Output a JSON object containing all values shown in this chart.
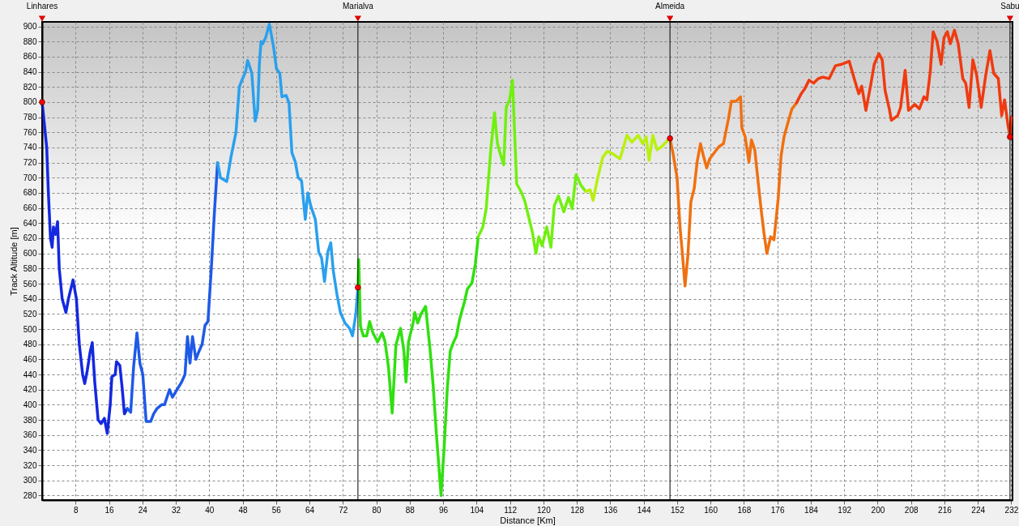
{
  "chart_data": {
    "type": "line",
    "xlabel": "Distance [Km]",
    "ylabel": "Track Altitude [m]",
    "xlim": [
      0,
      232.3
    ],
    "ylim": [
      274,
      906
    ],
    "xticks": [
      8,
      16,
      24,
      32,
      40,
      48,
      56,
      64,
      72,
      80,
      88,
      96,
      104,
      112,
      120,
      128,
      136,
      144,
      152,
      160,
      168,
      176,
      184,
      192,
      200,
      208,
      216,
      224,
      232
    ],
    "yticks": [
      280,
      300,
      320,
      340,
      360,
      380,
      400,
      420,
      440,
      460,
      480,
      500,
      520,
      540,
      560,
      580,
      600,
      620,
      640,
      660,
      680,
      700,
      720,
      740,
      760,
      780,
      800,
      820,
      840,
      860,
      880,
      900
    ],
    "grid": true,
    "series": [
      {
        "color": "#1428e0",
        "x": [
          0,
          1.1,
          1.5,
          2.0,
          2.4,
          2.7,
          3.2,
          3.7,
          4.1,
          4.8,
          5.7,
          6.3,
          7.4,
          8.2,
          8.9,
          9.7,
          10.2,
          10.8,
          11.5,
          12.0,
          12.6,
          13.4,
          14.1,
          14.9,
          15.6,
          16.3,
          16.7,
          17.5,
          17.8,
          18.6,
          19.2,
          19.7,
          20.4
        ],
        "values": [
          800,
          740,
          680,
          620,
          608,
          635,
          625,
          642,
          580,
          540,
          522,
          540,
          565,
          540,
          480,
          440,
          428,
          445,
          470,
          482,
          430,
          380,
          375,
          382,
          362,
          400,
          437,
          440,
          457,
          452,
          420,
          388,
          395
        ]
      },
      {
        "color": "#1e5ae8",
        "x": [
          20.4,
          21.2,
          21.9,
          22.7,
          23.4,
          24.1,
          24.9,
          26.0,
          26.7,
          27.5,
          28.6,
          29.3,
          30.5,
          31.2,
          32.3,
          33.4,
          34.2,
          34.8,
          35.4,
          36.0,
          36.8,
          37.5,
          38.3,
          39.0,
          39.7,
          40.5,
          41.2,
          42.0
        ],
        "values": [
          395,
          390,
          450,
          495,
          455,
          440,
          378,
          378,
          388,
          395,
          400,
          400,
          420,
          410,
          420,
          430,
          440,
          490,
          455,
          490,
          460,
          470,
          480,
          505,
          510,
          580,
          650,
          720
        ]
      },
      {
        "color": "#2aa0ee",
        "x": [
          42.0,
          42.7,
          44.2,
          45.3,
          46.4,
          47.2,
          47.9,
          48.7,
          49.2,
          49.8,
          50.2,
          51.0,
          51.6,
          52.0,
          52.4,
          52.8,
          53.5,
          54.4,
          55.4,
          56.1,
          56.9,
          57.4,
          58.4,
          59.1,
          59.8,
          60.6,
          61.3,
          62.1,
          63.0,
          63.6,
          64.3,
          65.4,
          66.2,
          66.9,
          67.6,
          68.4,
          69.1,
          69.7,
          70.6,
          71.4,
          72.5,
          73.6,
          74.3,
          75.1,
          75.6
        ],
        "values": [
          720,
          700,
          695,
          730,
          760,
          820,
          830,
          840,
          855,
          845,
          838,
          775,
          790,
          850,
          880,
          877,
          885,
          903,
          873,
          844,
          838,
          807,
          809,
          799,
          733,
          721,
          700,
          696,
          645,
          680,
          663,
          645,
          602,
          594,
          563,
          602,
          614,
          577,
          545,
          522,
          508,
          501,
          491,
          520,
          555
        ]
      },
      {
        "color": "#30e010",
        "x": [
          75.6,
          75.8,
          76.2,
          76.9,
          77.7,
          78.4,
          79.2,
          80.3,
          81.4,
          82.1,
          82.9,
          83.8,
          84.7,
          85.8,
          86.6,
          87.1,
          87.7,
          88.8,
          89.2,
          89.9,
          90.7,
          91.8,
          92.9,
          93.6,
          94.4,
          95.5,
          96.2,
          97.0,
          97.7,
          98.5,
          99.2,
          99.9,
          101.1,
          101.8,
          102.9,
          103.7,
          104.4
        ],
        "values": [
          555,
          592,
          504,
          491,
          491,
          510,
          495,
          483,
          495,
          483,
          450,
          389,
          479,
          501,
          471,
          430,
          483,
          508,
          522,
          508,
          520,
          530,
          471,
          426,
          360,
          280,
          340,
          422,
          471,
          483,
          491,
          512,
          536,
          553,
          561,
          586,
          622
        ]
      },
      {
        "color": "#70f010",
        "x": [
          104.4,
          105.5,
          106.3,
          107.4,
          108.3,
          109.0,
          109.6,
          110.5,
          111.1,
          111.9,
          112.6,
          113.6,
          114.8,
          115.6,
          116.7,
          117.4,
          118.2,
          118.9,
          119.7,
          120.8,
          121.8,
          122.6,
          123.6,
          124.9,
          126.0,
          126.9,
          127.8,
          129.0,
          130.1
        ],
        "values": [
          622,
          635,
          659,
          737,
          786,
          745,
          733,
          717,
          793,
          803,
          829,
          692,
          680,
          668,
          643,
          627,
          600,
          622,
          610,
          635,
          608,
          663,
          676,
          655,
          674,
          659,
          704,
          690,
          682
        ]
      },
      {
        "color": "#b8f010",
        "x": [
          130.1,
          131.2,
          131.9,
          133.0,
          134.2,
          135.3,
          136.8,
          138.3,
          139.0,
          140.0,
          141.2,
          142.7,
          143.8,
          144.6,
          145.3,
          146.2,
          147.2,
          148.3,
          149.0,
          149.8,
          150.3
        ],
        "values": [
          682,
          684,
          670,
          700,
          727,
          735,
          731,
          725,
          737,
          756,
          747,
          756,
          745,
          754,
          723,
          756,
          737,
          741,
          745,
          750,
          752
        ]
      },
      {
        "color": "#f07010",
        "x": [
          150.3,
          151.0,
          152.0,
          152.7,
          153.3,
          153.9,
          154.6,
          155.3,
          156.1,
          156.8,
          157.6,
          158.3,
          159.1,
          159.8,
          160.9,
          162.0,
          163.1,
          164.3,
          165.0,
          166.1,
          167.2,
          167.5,
          168.3,
          169.2,
          169.8,
          170.6,
          171.3,
          172.1,
          172.8,
          173.5,
          174.4,
          175.2,
          176.2,
          176.9,
          177.6,
          178.8,
          179.5,
          180.6
        ],
        "values": [
          752,
          733,
          700,
          635,
          598,
          557,
          598,
          668,
          686,
          721,
          745,
          729,
          713,
          725,
          733,
          741,
          745,
          778,
          801,
          801,
          807,
          766,
          754,
          721,
          750,
          737,
          700,
          659,
          627,
          600,
          622,
          618,
          672,
          729,
          754,
          778,
          791,
          799
        ]
      },
      {
        "color": "#f03a10",
        "x": [
          180.6,
          181.7,
          182.5,
          183.6,
          184.7,
          185.8,
          186.9,
          188.4,
          189.9,
          191.4,
          193.2,
          194.4,
          195.5,
          196.2,
          197.2,
          198.3,
          199.2,
          200.3,
          201.1,
          201.8,
          202.8,
          203.3,
          204.8,
          205.5,
          206.6,
          207.4,
          208.9,
          210.0,
          211.1,
          211.8,
          212.6,
          213.3,
          214.2,
          215.2,
          215.9,
          216.7,
          217.4,
          218.4,
          219.3,
          220.4,
          221.1,
          221.9,
          222.8,
          223.7,
          224.8,
          225.9,
          226.9,
          227.8,
          228.9,
          229.7,
          230.4,
          231.2,
          231.7,
          232.0
        ],
        "values": [
          799,
          811,
          817,
          829,
          825,
          831,
          833,
          831,
          848,
          850,
          854,
          831,
          811,
          821,
          789,
          821,
          850,
          864,
          856,
          815,
          791,
          776,
          782,
          793,
          842,
          789,
          797,
          791,
          807,
          803,
          840,
          893,
          881,
          850,
          885,
          893,
          877,
          895,
          877,
          831,
          825,
          793,
          856,
          836,
          793,
          836,
          868,
          838,
          831,
          782,
          803,
          770,
          754,
          780
        ]
      },
      {
        "type": "scatter",
        "marker": "circle",
        "color": "#ff0000",
        "x": [
          0,
          75.6,
          150.3,
          231.7
        ],
        "values": [
          800,
          555,
          752,
          754
        ]
      }
    ],
    "ref_lines": [
      {
        "axis": "x",
        "value": 0,
        "label": "Linhares",
        "color": "#000000"
      },
      {
        "axis": "x",
        "value": 75.6,
        "label": "Marialva",
        "color": "#000000"
      },
      {
        "axis": "x",
        "value": 150.3,
        "label": "Almeida",
        "color": "#000000"
      },
      {
        "axis": "x",
        "value": 231.7,
        "label": "Sabu",
        "color": "#000000"
      }
    ]
  }
}
